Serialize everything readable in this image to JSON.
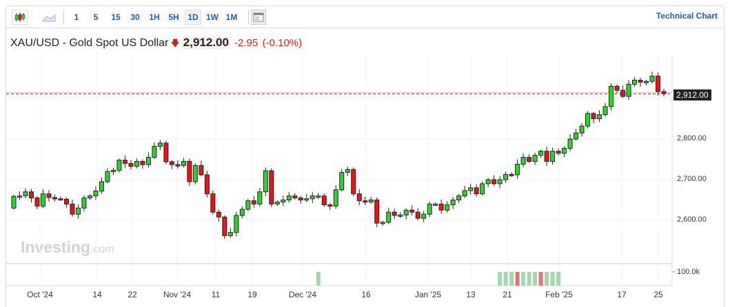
{
  "toolbar": {
    "intervals": [
      "1",
      "5",
      "15",
      "30",
      "1H",
      "5H",
      "1D",
      "1W",
      "1M"
    ],
    "active": "1D",
    "technical_chart": "Technical Chart"
  },
  "header": {
    "symbol": "XAU/USD - Gold Spot US Dollar",
    "price": "2,912.00",
    "change": "-2.95",
    "change_pct": "(-0.10%)"
  },
  "watermark": "Investing",
  "watermark_suffix": ".com",
  "colors": {
    "up": "#2bd62b",
    "down": "#e8141a",
    "link": "#1e5dae",
    "vol_up": "#a3d9b1",
    "vol_down": "#e57373"
  },
  "chart_data": {
    "type": "candlestick",
    "title": "XAU/USD - Gold Spot US Dollar",
    "y_ticks": [
      "2,600.00",
      "2,700.00",
      "2,800.00"
    ],
    "y_tick_values": [
      2600,
      2700,
      2800
    ],
    "ylim": [
      2525,
      3035
    ],
    "x_ticks": [
      "Oct '24",
      "14",
      "22",
      "Nov '24",
      "11",
      "19",
      "Dec '24",
      "16",
      "Jan '25",
      "13",
      "21",
      "Feb '25",
      "17",
      "25"
    ],
    "last_price_label": "2,912.00",
    "last_price": 2912,
    "first_open": 2630,
    "closes": [
      2659,
      2660,
      2670,
      2655,
      2635,
      2665,
      2656,
      2653,
      2652,
      2640,
      2615,
      2630,
      2655,
      2660,
      2672,
      2695,
      2720,
      2723,
      2748,
      2740,
      2733,
      2745,
      2737,
      2755,
      2782,
      2790,
      2744,
      2737,
      2735,
      2745,
      2695,
      2735,
      2712,
      2665,
      2620,
      2608,
      2562,
      2570,
      2612,
      2627,
      2648,
      2640,
      2670,
      2722,
      2640,
      2645,
      2650,
      2660,
      2655,
      2650,
      2653,
      2660,
      2660,
      2638,
      2635,
      2675,
      2718,
      2725,
      2665,
      2648,
      2645,
      2650,
      2593,
      2595,
      2620,
      2612,
      2613,
      2625,
      2620,
      2605,
      2615,
      2640,
      2640,
      2625,
      2638,
      2650,
      2660,
      2673,
      2680,
      2665,
      2690,
      2700,
      2690,
      2700,
      2713,
      2712,
      2738,
      2755,
      2745,
      2760,
      2770,
      2745,
      2770,
      2765,
      2777,
      2800,
      2815,
      2832,
      2863,
      2850,
      2860,
      2880,
      2930,
      2920,
      2905,
      2935,
      2945,
      2940,
      2942,
      2955,
      2917,
      2912
    ],
    "volume": {
      "label": "100.0k",
      "bars": [
        {
          "index": 52,
          "value": 100000,
          "dir": "up"
        },
        {
          "index": 83,
          "value": 100000,
          "dir": "up"
        },
        {
          "index": 84,
          "value": 100000,
          "dir": "up"
        },
        {
          "index": 85,
          "value": 100000,
          "dir": "up"
        },
        {
          "index": 86,
          "value": 100000,
          "dir": "down"
        },
        {
          "index": 87,
          "value": 100000,
          "dir": "up"
        },
        {
          "index": 88,
          "value": 100000,
          "dir": "up"
        },
        {
          "index": 89,
          "value": 100000,
          "dir": "up"
        },
        {
          "index": 90,
          "value": 100000,
          "dir": "down"
        },
        {
          "index": 91,
          "value": 100000,
          "dir": "up"
        },
        {
          "index": 92,
          "value": 100000,
          "dir": "up"
        },
        {
          "index": 93,
          "value": 100000,
          "dir": "up"
        }
      ]
    }
  }
}
